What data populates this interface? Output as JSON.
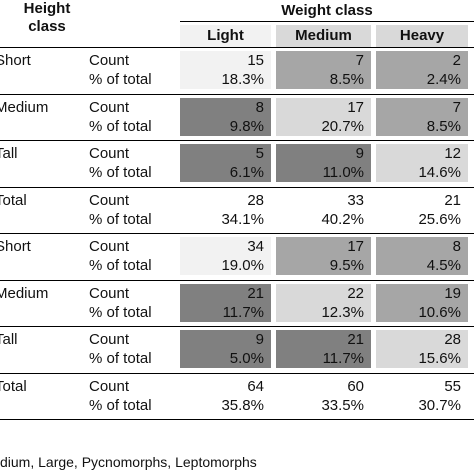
{
  "header": {
    "height_class": "Height\nclass",
    "weight_class": "Weight class",
    "columns": [
      "Light",
      "Medium",
      "Heavy"
    ]
  },
  "colors": {
    "white": "#ffffff",
    "lightest": "#f2f2f2",
    "light": "#d9d9d9",
    "mid": "#a6a6a6",
    "dark": "#808080"
  },
  "rows": [
    {
      "group": "Short",
      "label1": "Count",
      "label2": "% of total",
      "cells": [
        {
          "count": "15",
          "pct": "18.3%",
          "shade": "lightest"
        },
        {
          "count": "7",
          "pct": "8.5%",
          "shade": "mid"
        },
        {
          "count": "2",
          "pct": "2.4%",
          "shade": "mid"
        }
      ]
    },
    {
      "group": "Medium",
      "label1": "Count",
      "label2": "% of total",
      "cells": [
        {
          "count": "8",
          "pct": "9.8%",
          "shade": "dark"
        },
        {
          "count": "17",
          "pct": "20.7%",
          "shade": "light"
        },
        {
          "count": "7",
          "pct": "8.5%",
          "shade": "mid"
        }
      ]
    },
    {
      "group": "Tall",
      "label1": "Count",
      "label2": "% of total",
      "cells": [
        {
          "count": "5",
          "pct": "6.1%",
          "shade": "dark"
        },
        {
          "count": "9",
          "pct": "11.0%",
          "shade": "dark"
        },
        {
          "count": "12",
          "pct": "14.6%",
          "shade": "light"
        }
      ]
    },
    {
      "group": "Total",
      "label1": "Count",
      "label2": "% of total",
      "cells": [
        {
          "count": "28",
          "pct": "34.1%",
          "shade": "white"
        },
        {
          "count": "33",
          "pct": "40.2%",
          "shade": "white"
        },
        {
          "count": "21",
          "pct": "25.6%",
          "shade": "white"
        }
      ]
    },
    {
      "group": "Short",
      "label1": "Count",
      "label2": "% of total",
      "cells": [
        {
          "count": "34",
          "pct": "19.0%",
          "shade": "lightest"
        },
        {
          "count": "17",
          "pct": "9.5%",
          "shade": "mid"
        },
        {
          "count": "8",
          "pct": "4.5%",
          "shade": "mid"
        }
      ]
    },
    {
      "group": "Medium",
      "label1": "Count",
      "label2": "% of total",
      "cells": [
        {
          "count": "21",
          "pct": "11.7%",
          "shade": "dark"
        },
        {
          "count": "22",
          "pct": "12.3%",
          "shade": "light"
        },
        {
          "count": "19",
          "pct": "10.6%",
          "shade": "mid"
        }
      ]
    },
    {
      "group": "Tall",
      "label1": "Count",
      "label2": "% of total",
      "cells": [
        {
          "count": "9",
          "pct": "5.0%",
          "shade": "dark"
        },
        {
          "count": "21",
          "pct": "11.7%",
          "shade": "dark"
        },
        {
          "count": "28",
          "pct": "15.6%",
          "shade": "light"
        }
      ]
    },
    {
      "group": "Total",
      "label1": "Count",
      "label2": "% of total",
      "cells": [
        {
          "count": "64",
          "pct": "35.8%",
          "shade": "white"
        },
        {
          "count": "60",
          "pct": "33.5%",
          "shade": "white"
        },
        {
          "count": "55",
          "pct": "30.7%",
          "shade": "white"
        }
      ]
    }
  ],
  "footnote": "dium, Large, Pycnomorphs, Leptomorphs"
}
